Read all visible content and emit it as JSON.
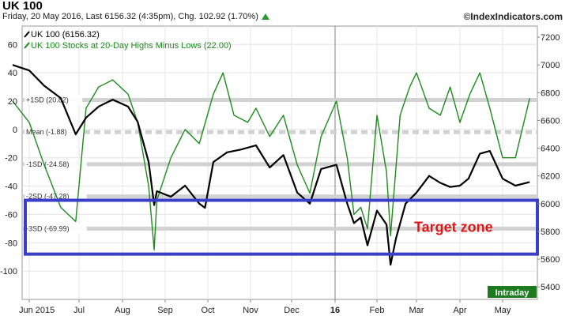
{
  "header": {
    "title": "UK 100",
    "info": "Friday, 20 May 2016, Last 6156.32 (4:35pm), Chg. 102.92 (1.70%)",
    "watermark": "©IndexIndicators.com",
    "change_direction_icon": "up-triangle-icon"
  },
  "chart_data": {
    "type": "line",
    "legend": [
      {
        "label": "UK 100 (6156.32)",
        "color": "#000000"
      },
      {
        "label": "UK 100 Stocks at 20-Day Highs Minus Lows (22.00)",
        "color": "#1f8a1f"
      }
    ],
    "x_ticks": [
      "Jun 2015",
      "Jul",
      "Aug",
      "Sep",
      "Oct",
      "Nov",
      "Dec",
      "16",
      "Feb",
      "Mar",
      "Apr",
      "May"
    ],
    "y_left_ticks": [
      60,
      40,
      20,
      0,
      -20,
      -40,
      -60,
      -80,
      -100
    ],
    "y_right_ticks": [
      7200,
      7000,
      6800,
      6600,
      6400,
      6200,
      6000,
      5800,
      5600,
      5400
    ],
    "ylim_left": [
      -120,
      73
    ],
    "ylim_right": [
      5310,
      7280
    ],
    "grid": true,
    "legend_position": "top-left",
    "levels": [
      {
        "label": "+1SD (20.82)",
        "value": 20.82
      },
      {
        "label": "Mean (-1.88)",
        "value": -1.88
      },
      {
        "label": "-1SD (-24.58)",
        "value": -24.58
      },
      {
        "label": "-2SD (-47.28)",
        "value": -47.28
      },
      {
        "label": "-3SD (-69.99)",
        "value": -69.99
      }
    ],
    "badge": "Intraday",
    "annotation": "Target zone",
    "target_zone": [
      -50,
      -88
    ],
    "series": [
      {
        "name": "UK 100 (6156.32)",
        "axis": "right",
        "color": "#000000",
        "x": [
          "2015-05-22",
          "2015-06-01",
          "2015-06-10",
          "2015-06-20",
          "2015-06-29",
          "2015-07-06",
          "2015-07-15",
          "2015-07-25",
          "2015-08-05",
          "2015-08-12",
          "2015-08-20",
          "2015-08-24",
          "2015-08-26",
          "2015-09-05",
          "2015-09-15",
          "2015-09-25",
          "2015-09-29",
          "2015-10-05",
          "2015-10-15",
          "2015-10-25",
          "2015-11-05",
          "2015-11-15",
          "2015-11-25",
          "2015-12-05",
          "2015-12-14",
          "2015-12-22",
          "2016-01-02",
          "2016-01-10",
          "2016-01-15",
          "2016-01-20",
          "2016-01-25",
          "2016-02-01",
          "2016-02-08",
          "2016-02-11",
          "2016-02-15",
          "2016-02-22",
          "2016-03-01",
          "2016-03-10",
          "2016-03-18",
          "2016-03-25",
          "2016-04-01",
          "2016-04-07",
          "2016-04-15",
          "2016-04-22",
          "2016-05-01",
          "2016-05-10",
          "2016-05-20"
        ],
        "values": [
          7000,
          6960,
          6850,
          6760,
          6500,
          6620,
          6700,
          6750,
          6700,
          6590,
          6300,
          5990,
          6090,
          6050,
          6130,
          6000,
          5970,
          6300,
          6370,
          6390,
          6420,
          6260,
          6350,
          6080,
          6000,
          6250,
          6280,
          6000,
          5860,
          5900,
          5700,
          5950,
          5850,
          5560,
          5750,
          6000,
          6080,
          6200,
          6150,
          6120,
          6130,
          6180,
          6360,
          6380,
          6180,
          6130,
          6156
        ]
      },
      {
        "name": "UK 100 Stocks at 20-Day Highs Minus Lows (22.00)",
        "axis": "left",
        "color": "#1f8a1f",
        "x": [
          "2015-05-22",
          "2015-06-01",
          "2015-06-10",
          "2015-06-20",
          "2015-06-29",
          "2015-07-06",
          "2015-07-15",
          "2015-07-25",
          "2015-08-05",
          "2015-08-12",
          "2015-08-20",
          "2015-08-24",
          "2015-08-26",
          "2015-09-05",
          "2015-09-15",
          "2015-09-25",
          "2015-10-05",
          "2015-10-12",
          "2015-10-20",
          "2015-10-30",
          "2015-11-05",
          "2015-11-15",
          "2015-11-25",
          "2015-12-05",
          "2015-12-14",
          "2015-12-22",
          "2016-01-02",
          "2016-01-10",
          "2016-01-15",
          "2016-01-20",
          "2016-01-25",
          "2016-02-01",
          "2016-02-08",
          "2016-02-11",
          "2016-02-18",
          "2016-02-25",
          "2016-03-01",
          "2016-03-10",
          "2016-03-18",
          "2016-03-25",
          "2016-04-01",
          "2016-04-08",
          "2016-04-15",
          "2016-04-22",
          "2016-05-01",
          "2016-05-10",
          "2016-05-20"
        ],
        "values": [
          20,
          5,
          -25,
          -55,
          -65,
          15,
          30,
          35,
          25,
          5,
          -40,
          -85,
          -50,
          -20,
          0,
          -10,
          25,
          40,
          10,
          5,
          15,
          -5,
          10,
          -25,
          -45,
          -5,
          20,
          -20,
          -60,
          -55,
          -70,
          10,
          -30,
          -75,
          10,
          30,
          40,
          15,
          10,
          30,
          5,
          25,
          40,
          15,
          -20,
          -20,
          22
        ]
      }
    ]
  }
}
